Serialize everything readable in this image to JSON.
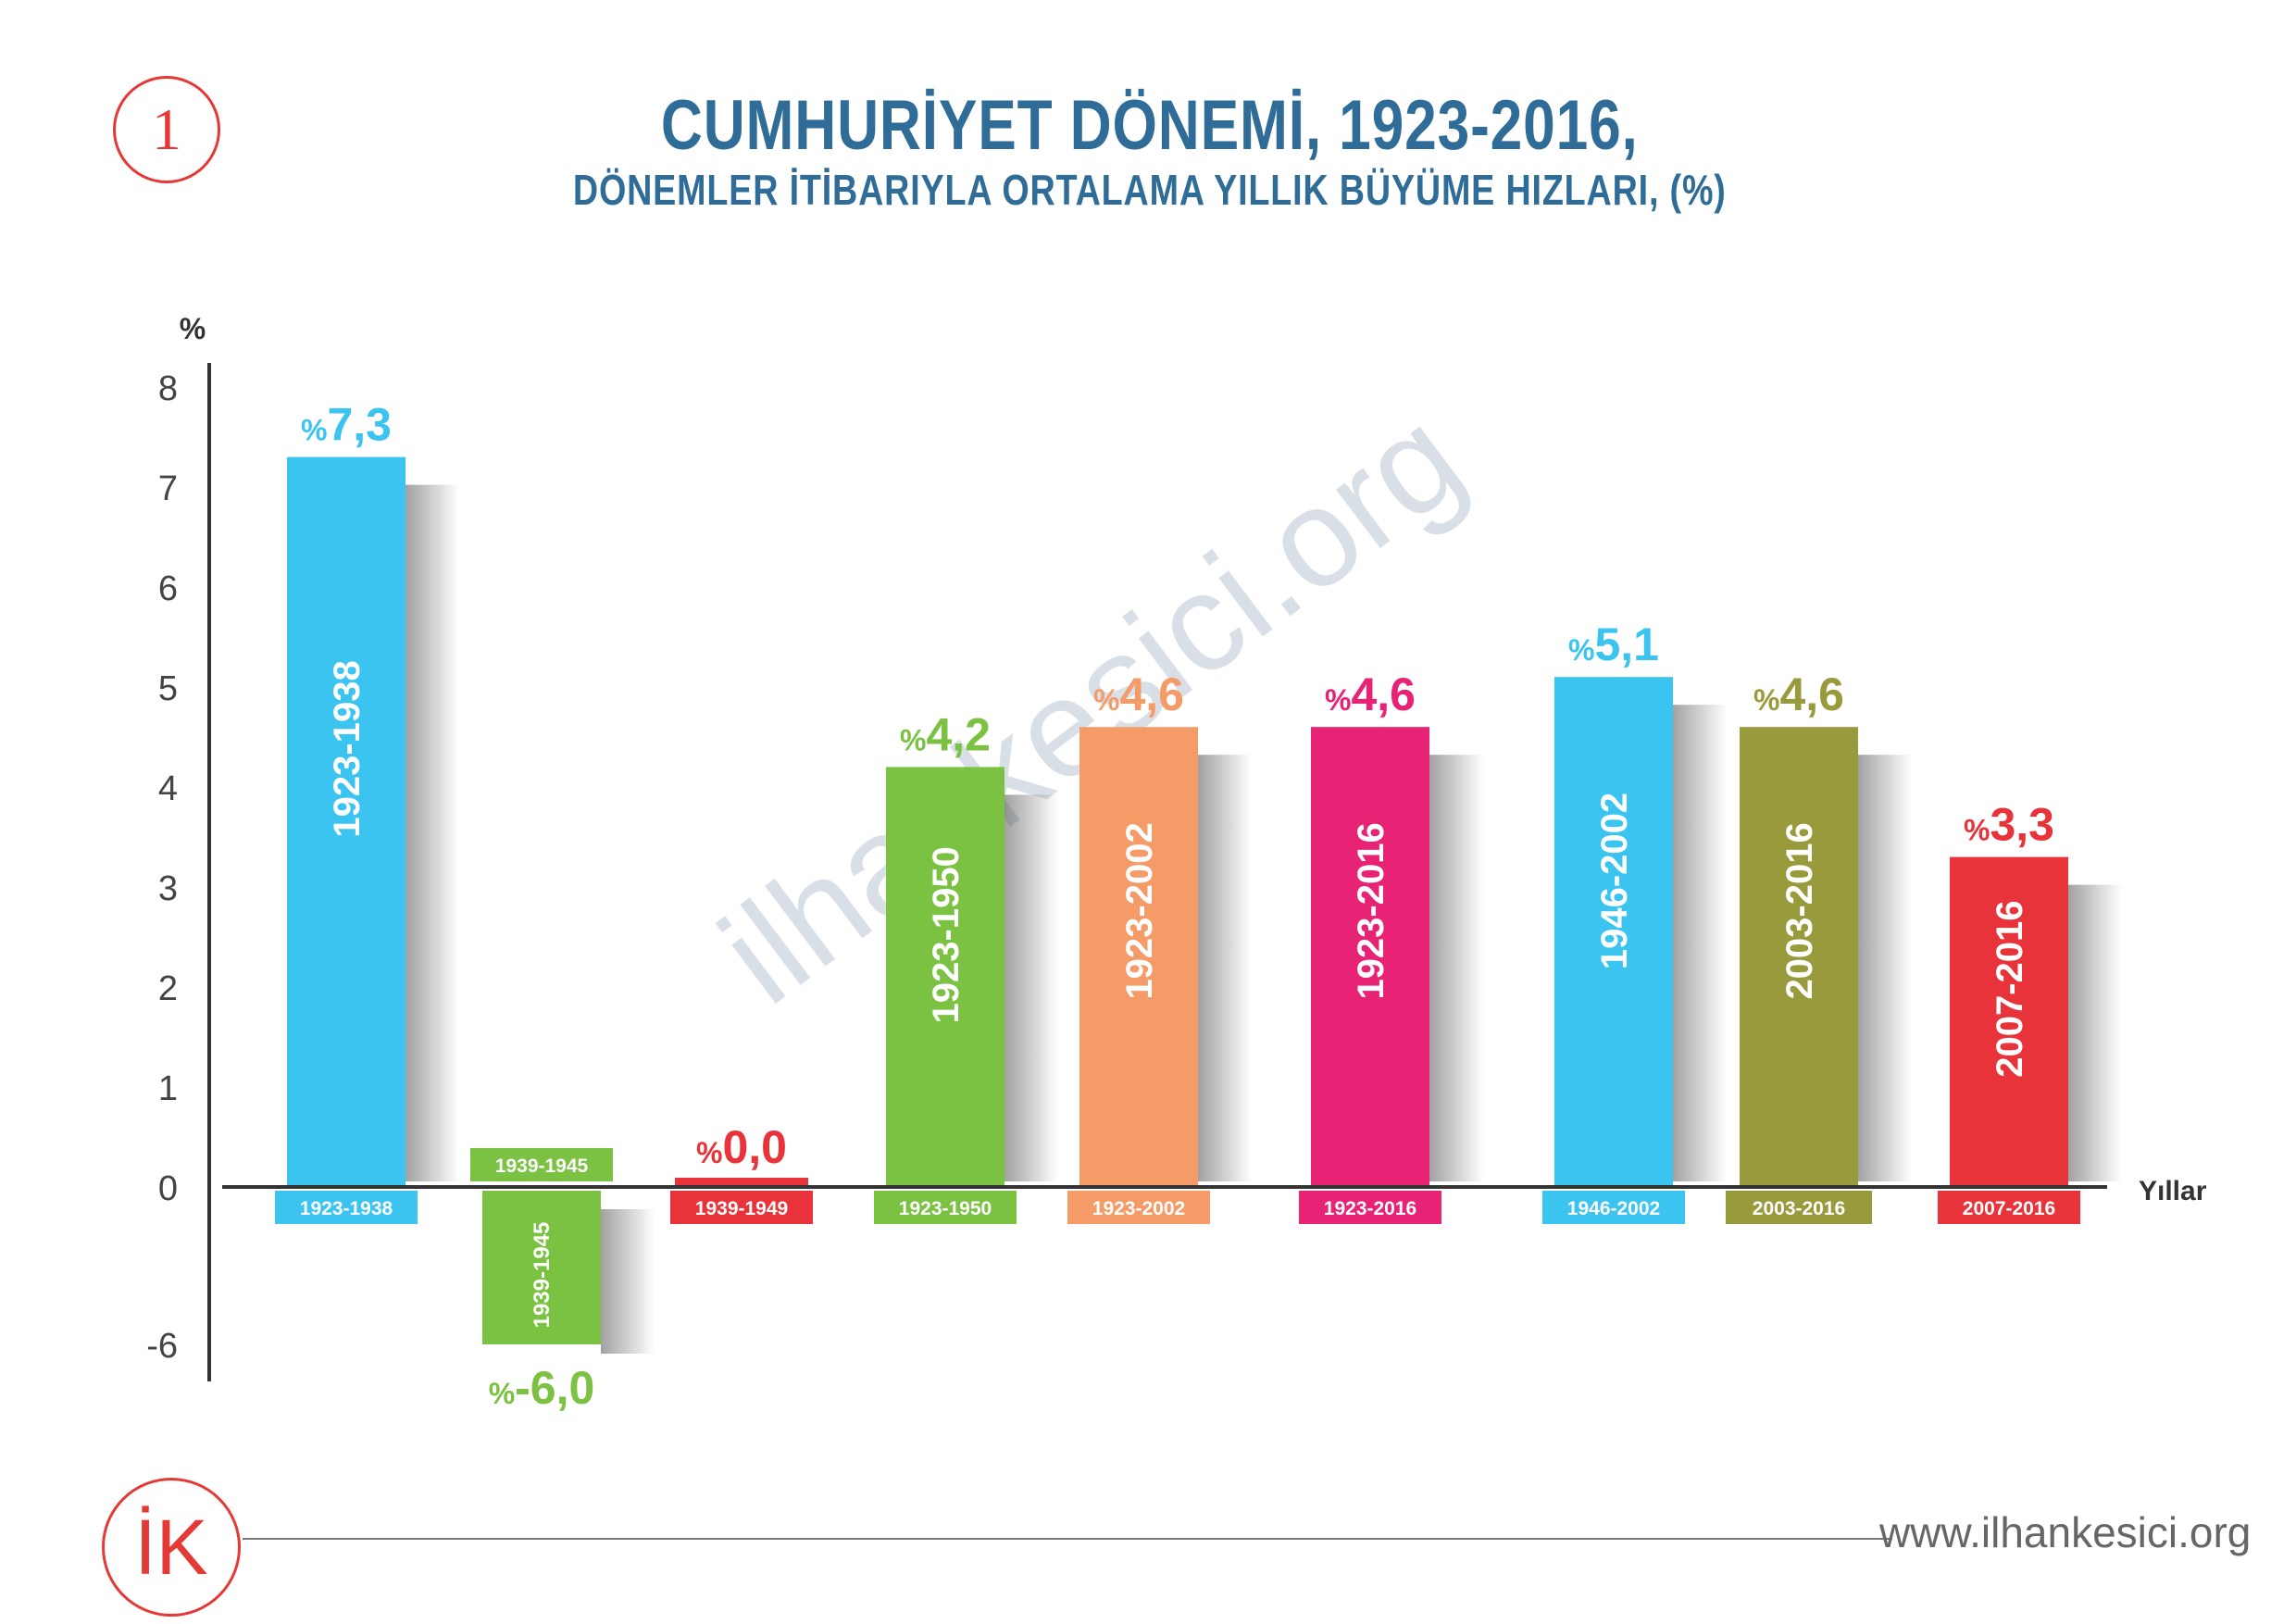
{
  "badge": "1",
  "title": "CUMHURİYET DÖNEMİ, 1923-2016,",
  "subtitle": "DÖNEMLER İTİBARIYLA ORTALAMA YILLIK BÜYÜME HIZLARI, (%)",
  "watermark": "ilhankesici.org",
  "logo": "İK",
  "footer_url": "www.ilhankesici.org",
  "chart_data": {
    "type": "bar",
    "title": "CUMHURİYET DÖNEMİ, 1923-2016, DÖNEMLER İTİBARIYLA ORTALAMA YILLIK BÜYÜME HIZLARI, (%)",
    "ylabel": "%",
    "xlabel": "Yıllar",
    "yticks": [
      8,
      7,
      6,
      5,
      4,
      3,
      2,
      1,
      0,
      -6
    ],
    "ylim": [
      -6,
      8
    ],
    "y_axis_note": "negative section is compressed: -6 drawn just below 0",
    "categories": [
      "1923-1938",
      "1939-1945",
      "1939-1949",
      "1923-1950",
      "1923-2002",
      "1923-2016",
      "1946-2002",
      "2003-2016",
      "2007-2016"
    ],
    "values": [
      7.3,
      -6.0,
      0.0,
      4.2,
      4.6,
      4.6,
      5.1,
      4.6,
      3.3
    ],
    "value_labels": [
      "7,3",
      "-6,0",
      "0,0",
      "4,2",
      "4,6",
      "4,6",
      "5,1",
      "4,6",
      "3,3"
    ],
    "value_prefix": "%",
    "colors": [
      "#3cc4f0",
      "#7bc142",
      "#e8333a",
      "#7bc142",
      "#f59b67",
      "#e82275",
      "#3cc4f0",
      "#999a3b",
      "#e8333a"
    ],
    "axis_color": "#333333",
    "grid": false
  }
}
